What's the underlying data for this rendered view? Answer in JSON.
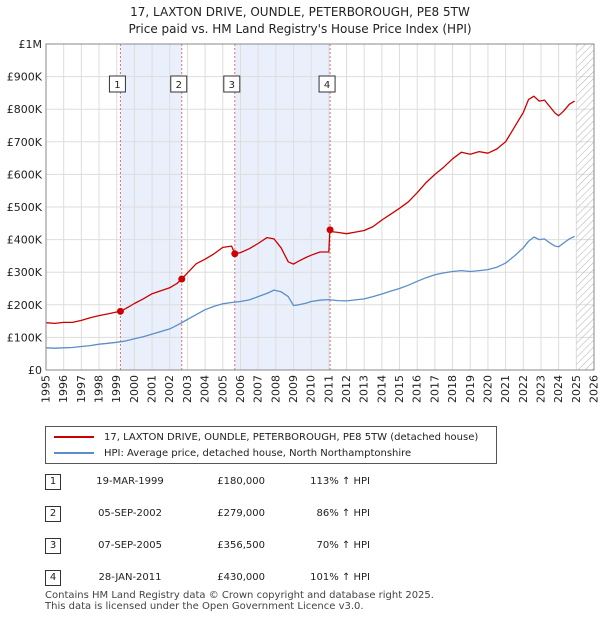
{
  "chart_data": {
    "type": "line",
    "title": "17, LAXTON DRIVE, OUNDLE, PETERBOROUGH, PE8 5TW",
    "subtitle": "Price paid vs. HM Land Registry's House Price Index (HPI)",
    "xlabel": "",
    "ylabel": "",
    "xlim": [
      1995,
      2026
    ],
    "ylim": [
      0,
      1000000
    ],
    "y_ticks": [
      {
        "value": 0,
        "label": "£0"
      },
      {
        "value": 100000,
        "label": "£100K"
      },
      {
        "value": 200000,
        "label": "£200K"
      },
      {
        "value": 300000,
        "label": "£300K"
      },
      {
        "value": 400000,
        "label": "£400K"
      },
      {
        "value": 500000,
        "label": "£500K"
      },
      {
        "value": 600000,
        "label": "£600K"
      },
      {
        "value": 700000,
        "label": "£700K"
      },
      {
        "value": 800000,
        "label": "£800K"
      },
      {
        "value": 900000,
        "label": "£900K"
      },
      {
        "value": 1000000,
        "label": "£1M"
      }
    ],
    "x_ticks": [
      "1995",
      "1996",
      "1997",
      "1998",
      "1999",
      "2000",
      "2001",
      "2002",
      "2003",
      "2004",
      "2005",
      "2006",
      "2007",
      "2008",
      "2009",
      "2010",
      "2011",
      "2012",
      "2013",
      "2014",
      "2015",
      "2016",
      "2017",
      "2018",
      "2019",
      "2020",
      "2021",
      "2022",
      "2023",
      "2024",
      "2025",
      "2026"
    ],
    "grid": true,
    "future_hatch_from": 2025.0,
    "colors": {
      "property": "#cc0000",
      "hpi": "#5b8ec9",
      "shade": "#eaf0fb",
      "vline": "#e07070"
    },
    "series": [
      {
        "name": "17, LAXTON DRIVE, OUNDLE, PETERBOROUGH, PE8 5TW (detached house)",
        "color": "#cc0000",
        "x": [
          1995.0,
          1995.5,
          1996.0,
          1996.5,
          1997.0,
          1997.5,
          1998.0,
          1998.5,
          1999.0,
          1999.21,
          1999.5,
          2000.0,
          2000.5,
          2001.0,
          2001.5,
          2002.0,
          2002.4,
          2002.68,
          2003.0,
          2003.5,
          2004.0,
          2004.5,
          2005.0,
          2005.5,
          2005.68,
          2006.0,
          2006.5,
          2007.0,
          2007.5,
          2007.9,
          2008.3,
          2008.7,
          2009.0,
          2009.3,
          2009.7,
          2010.0,
          2010.5,
          2011.0,
          2011.06,
          2011.08,
          2011.5,
          2012.0,
          2012.5,
          2013.0,
          2013.5,
          2014.0,
          2014.5,
          2015.0,
          2015.5,
          2016.0,
          2016.5,
          2017.0,
          2017.5,
          2018.0,
          2018.5,
          2019.0,
          2019.5,
          2020.0,
          2020.5,
          2021.0,
          2021.5,
          2022.0,
          2022.3,
          2022.6,
          2022.9,
          2023.2,
          2023.5,
          2023.8,
          2024.0,
          2024.3,
          2024.6,
          2024.9
        ],
        "values": [
          145000,
          143000,
          146000,
          146000,
          152000,
          160000,
          167000,
          172000,
          178000,
          180000,
          188000,
          204000,
          218000,
          234000,
          243000,
          252000,
          265000,
          279000,
          298000,
          326000,
          340000,
          356000,
          376000,
          380000,
          356500,
          360000,
          372000,
          388000,
          406000,
          402000,
          375000,
          332000,
          325000,
          334000,
          345000,
          352000,
          362000,
          362000,
          430000,
          425000,
          422000,
          418000,
          423000,
          428000,
          440000,
          460000,
          478000,
          496000,
          516000,
          544000,
          575000,
          600000,
          622000,
          648000,
          668000,
          662000,
          670000,
          665000,
          678000,
          700000,
          745000,
          790000,
          830000,
          840000,
          825000,
          828000,
          808000,
          788000,
          780000,
          795000,
          815000,
          825000
        ]
      },
      {
        "name": "HPI: Average price, detached house, North Northamptonshire",
        "color": "#5b8ec9",
        "x": [
          1995.0,
          1995.5,
          1996.0,
          1996.5,
          1997.0,
          1997.5,
          1998.0,
          1998.5,
          1999.0,
          1999.5,
          2000.0,
          2000.5,
          2001.0,
          2001.5,
          2002.0,
          2002.5,
          2003.0,
          2003.5,
          2004.0,
          2004.5,
          2005.0,
          2005.5,
          2006.0,
          2006.5,
          2007.0,
          2007.5,
          2007.9,
          2008.3,
          2008.7,
          2009.0,
          2009.3,
          2009.7,
          2010.0,
          2010.5,
          2011.0,
          2011.5,
          2012.0,
          2012.5,
          2013.0,
          2013.5,
          2014.0,
          2014.5,
          2015.0,
          2015.5,
          2016.0,
          2016.5,
          2017.0,
          2017.5,
          2018.0,
          2018.5,
          2019.0,
          2019.5,
          2020.0,
          2020.5,
          2021.0,
          2021.5,
          2022.0,
          2022.3,
          2022.6,
          2022.9,
          2023.2,
          2023.5,
          2023.8,
          2024.0,
          2024.3,
          2024.6,
          2024.9
        ],
        "values": [
          68000,
          67000,
          68000,
          69000,
          72000,
          75000,
          79000,
          82000,
          85000,
          89000,
          96000,
          102000,
          110000,
          118000,
          126000,
          140000,
          155000,
          170000,
          185000,
          195000,
          203000,
          207000,
          210000,
          215000,
          225000,
          235000,
          245000,
          240000,
          225000,
          198000,
          200000,
          205000,
          210000,
          214000,
          216000,
          213000,
          212000,
          215000,
          218000,
          225000,
          233000,
          242000,
          250000,
          260000,
          272000,
          283000,
          292000,
          298000,
          302000,
          305000,
          302000,
          305000,
          308000,
          315000,
          328000,
          350000,
          375000,
          395000,
          408000,
          400000,
          402000,
          390000,
          380000,
          378000,
          390000,
          402000,
          410000
        ]
      }
    ],
    "sales": [
      {
        "n": "1",
        "x": 1999.21,
        "value": 180000,
        "date": "19-MAR-1999",
        "price": "£180,000",
        "hpi": "113% ↑ HPI"
      },
      {
        "n": "2",
        "x": 2002.68,
        "value": 279000,
        "date": "05-SEP-2002",
        "price": "£279,000",
        "hpi": "86% ↑ HPI"
      },
      {
        "n": "3",
        "x": 2005.68,
        "value": 356500,
        "date": "07-SEP-2005",
        "price": "£356,500",
        "hpi": "70% ↑ HPI"
      },
      {
        "n": "4",
        "x": 2011.07,
        "value": 430000,
        "date": "28-JAN-2011",
        "price": "£430,000",
        "hpi": "101% ↑ HPI"
      }
    ]
  },
  "footer": {
    "line1": "Contains HM Land Registry data © Crown copyright and database right 2025.",
    "line2": "This data is licensed under the Open Government Licence v3.0."
  }
}
